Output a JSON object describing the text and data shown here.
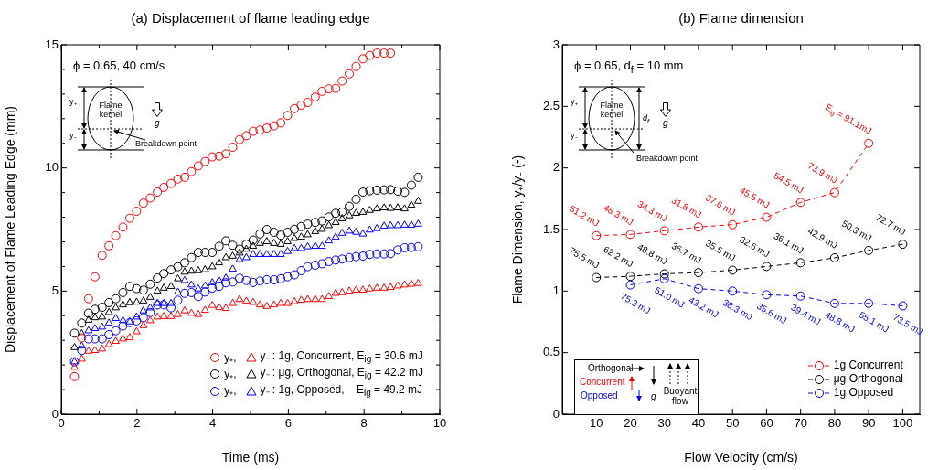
{
  "chart_data": [
    {
      "type": "scatter",
      "title": "(a) Displacement of flame leading edge",
      "xlabel": "Time (ms)",
      "ylabel": "Displacement of Flame Leading Edge (mm)",
      "x": [
        0.35,
        0.54,
        0.72,
        0.89,
        1.08,
        1.26,
        1.44,
        1.63,
        1.81,
        1.99,
        2.17,
        2.35,
        2.54,
        2.71,
        2.9,
        3.08,
        3.26,
        3.44,
        3.62,
        3.8,
        3.99,
        4.17,
        4.35,
        4.53,
        4.71,
        4.89,
        5.07,
        5.25,
        5.43,
        5.62,
        5.8,
        5.98,
        6.16,
        6.34,
        6.51,
        6.71,
        6.89,
        7.07,
        7.25,
        7.42,
        7.61,
        7.79,
        7.97,
        8.15,
        8.34,
        8.53,
        8.7,
        8.89,
        9.07,
        9.25,
        9.43
      ],
      "xlim": [
        0,
        10
      ],
      "xticks": [
        0,
        {
          "value": 1,
          "label": null
        },
        2,
        {
          "value": 3,
          "label": null
        },
        4,
        {
          "value": 5,
          "label": null
        },
        6,
        {
          "value": 7,
          "label": null
        },
        8,
        {
          "value": 9,
          "label": null
        },
        10
      ],
      "ylim": [
        0,
        15
      ],
      "yticks": [
        0,
        {
          "value": 1,
          "label": null
        },
        {
          "value": 2,
          "label": null
        },
        {
          "value": 3,
          "label": null
        },
        {
          "value": 4,
          "label": null
        },
        5,
        {
          "value": 6,
          "label": null
        },
        {
          "value": 7,
          "label": null
        },
        {
          "value": 8,
          "label": null
        },
        {
          "value": 9,
          "label": null
        },
        10,
        {
          "value": 11,
          "label": null
        },
        {
          "value": 12,
          "label": null
        },
        {
          "value": 13,
          "label": null
        },
        {
          "value": 14,
          "label": null
        },
        15
      ],
      "grid": false,
      "legend": "bottom right",
      "annotations": [
        "ϕ = 0.65, 40 cm/s",
        "y₊",
        "y₋",
        "Flame kernel",
        "g",
        "Breakdown point"
      ],
      "series": [
        {
          "name": "y₊,",
          "color": "#ff0000",
          "marker": "circle",
          "values": [
            1.53,
            3.1,
            4.69,
            5.58,
            6.45,
            6.84,
            7.25,
            7.6,
            7.96,
            8.24,
            8.57,
            8.78,
            9.02,
            9.21,
            9.37,
            9.55,
            9.62,
            9.85,
            10.08,
            10.26,
            10.45,
            10.48,
            10.57,
            10.84,
            11.15,
            11.31,
            11.49,
            11.54,
            11.62,
            11.71,
            11.83,
            12.13,
            12.41,
            12.55,
            12.66,
            12.88,
            13.11,
            13.21,
            13.23,
            13.53,
            13.82,
            14.12,
            14.43,
            14.57,
            14.66,
            14.66,
            14.66,
            null,
            null,
            null,
            null
          ]
        },
        {
          "name": "y₋ : 1g, Concurrent, E$_{ig}$ = 30.6 mJ",
          "color": "#ff0000",
          "marker": "triangle",
          "values": [
            1.91,
            2.24,
            2.56,
            2.59,
            2.65,
            2.83,
            2.96,
            3.06,
            3.11,
            3.35,
            3.6,
            3.8,
            3.95,
            3.97,
            3.97,
            4.05,
            4.2,
            4.1,
            4.05,
            4.22,
            4.42,
            4.34,
            4.3,
            4.5,
            4.66,
            4.59,
            4.54,
            4.44,
            4.38,
            4.44,
            4.5,
            4.5,
            4.57,
            4.63,
            4.66,
            4.66,
            4.66,
            4.78,
            4.91,
            4.94,
            5.0,
            5.04,
            5.04,
            5.09,
            5.12,
            5.12,
            5.15,
            5.21,
            5.25,
            5.28,
            5.31
          ]
        },
        {
          "name": "y₊,",
          "color": "#000000",
          "marker": "circle",
          "values": [
            3.29,
            3.7,
            4.1,
            4.26,
            4.34,
            4.53,
            4.69,
            4.94,
            5.19,
            5.1,
            5.04,
            5.28,
            5.53,
            5.71,
            5.86,
            5.99,
            6.15,
            6.36,
            6.57,
            6.57,
            6.57,
            6.82,
            7.04,
            6.86,
            6.7,
            6.9,
            7.07,
            7.32,
            7.5,
            7.39,
            7.27,
            7.39,
            7.51,
            7.62,
            7.72,
            7.79,
            7.85,
            8.01,
            8.16,
            8.21,
            8.44,
            8.73,
            9.02,
            9.07,
            9.1,
            9.11,
            9.12,
            9.06,
            9.01,
            9.3,
            9.62
          ]
        },
        {
          "name": "y₋ : μg, Orthogonal, E$_{ig}$ = 42.2 mJ",
          "color": "#000000",
          "marker": "triangle",
          "values": [
            2.71,
            3.27,
            3.82,
            3.92,
            3.95,
            4.13,
            4.32,
            4.44,
            4.53,
            4.55,
            4.6,
            4.75,
            5.0,
            5.12,
            5.19,
            5.5,
            5.77,
            5.81,
            5.83,
            5.87,
            5.99,
            6.15,
            6.36,
            6.42,
            6.55,
            6.7,
            6.82,
            6.94,
            7.01,
            6.94,
            6.9,
            7.01,
            7.14,
            7.19,
            7.29,
            7.42,
            7.51,
            7.66,
            7.79,
            7.94,
            8.06,
            8.16,
            8.2,
            8.28,
            8.34,
            8.38,
            8.36,
            8.38,
            8.34,
            8.49,
            8.65
          ]
        },
        {
          "name": "y₊,",
          "color": "#0000ff",
          "marker": "circle",
          "values": [
            2.13,
            2.59,
            3.06,
            3.06,
            3.06,
            3.23,
            3.39,
            3.58,
            3.72,
            3.79,
            3.92,
            4.13,
            4.44,
            4.44,
            4.32,
            4.63,
            4.91,
            4.94,
            4.78,
            4.96,
            5.12,
            5.19,
            5.34,
            5.37,
            5.52,
            5.43,
            5.35,
            5.41,
            5.46,
            5.46,
            5.5,
            5.58,
            5.66,
            5.83,
            5.99,
            6.05,
            6.11,
            6.2,
            6.26,
            6.3,
            6.36,
            6.4,
            6.42,
            6.49,
            6.51,
            6.51,
            6.52,
            6.67,
            6.76,
            6.77,
            6.8
          ]
        },
        {
          "name": "y₋ : 1g, Opposed,    E$_{ig}$ = 49.2 mJ",
          "color": "#0000ff",
          "marker": "triangle",
          "values": [
            2.13,
            2.77,
            3.39,
            3.48,
            3.54,
            3.7,
            3.89,
            3.8,
            3.75,
            3.95,
            4.2,
            4.32,
            4.5,
            4.5,
            4.5,
            4.96,
            5.43,
            5.25,
            5.09,
            5.21,
            5.34,
            5.43,
            5.53,
            5.89,
            6.28,
            6.36,
            6.49,
            6.49,
            6.49,
            6.49,
            6.49,
            6.61,
            6.73,
            6.73,
            6.8,
            6.82,
            6.82,
            7.04,
            7.19,
            7.35,
            7.44,
            7.39,
            7.32,
            7.48,
            7.54,
            7.64,
            7.66,
            7.66,
            7.68,
            7.68,
            7.72
          ]
        }
      ]
    },
    {
      "type": "line",
      "title": "(b) Flame dimension",
      "xlabel": "Flow Velocity (cm/s)",
      "ylabel": "Flame Dimension, y₊/y₋ (-)",
      "x": [
        10,
        20,
        30,
        40,
        50,
        60,
        70,
        80,
        90,
        100
      ],
      "xlim": [
        0,
        105
      ],
      "xticks": [
        10,
        20,
        30,
        40,
        50,
        60,
        70,
        80,
        90,
        100
      ],
      "ylim": [
        0,
        3
      ],
      "yticks": [
        0,
        0.5,
        1,
        1.5,
        2,
        2.5,
        3
      ],
      "grid": false,
      "legend": "bottom right",
      "marker": "circle",
      "line_style": "dashed",
      "annotations": [
        "ϕ = 0.65, d$_{f}$ = 10 mm",
        "y₊",
        "y₋",
        "Flame kernel",
        "g",
        "Breakdown point",
        "d$_{f}$",
        "Orthogonal",
        "Concurrent",
        "Opposed",
        "g",
        "Buoyant flow",
        {
          "text": "51.2 mJ",
          "x": 10,
          "y": 1.45
        },
        {
          "text": "48.3 mJ",
          "x": 20,
          "y": 1.46
        },
        {
          "text": "34.3 mJ",
          "x": 30,
          "y": 1.49
        },
        {
          "text": "31.8 mJ",
          "x": 40,
          "y": 1.52
        },
        {
          "text": "37.6 mJ",
          "x": 50,
          "y": 1.54
        },
        {
          "text": "45.5 mJ",
          "x": 60,
          "y": 1.6
        },
        {
          "text": "54.5 mJ",
          "x": 70,
          "y": 1.72
        },
        {
          "text": "73.9 mJ",
          "x": 80,
          "y": 1.8
        },
        {
          "text": "E$_{ig}$ = 91.1mJ",
          "x": 90,
          "y": 2.2
        },
        {
          "text": "75.5 mJ",
          "x": 10,
          "y": 1.11
        },
        {
          "text": "62.2 mJ",
          "x": 20,
          "y": 1.12
        },
        {
          "text": "48.8 mJ",
          "x": 30,
          "y": 1.14
        },
        {
          "text": "36.7 mJ",
          "x": 40,
          "y": 1.15
        },
        {
          "text": "35.5 mJ",
          "x": 50,
          "y": 1.17
        },
        {
          "text": "32.6 mJ",
          "x": 60,
          "y": 1.2
        },
        {
          "text": "36.1 mJ",
          "x": 70,
          "y": 1.23
        },
        {
          "text": "42.9 mJ",
          "x": 80,
          "y": 1.27
        },
        {
          "text": "50.3 mJ",
          "x": 90,
          "y": 1.33
        },
        {
          "text": "72.7 mJ",
          "x": 100,
          "y": 1.38
        },
        {
          "text": "75.3 mJ",
          "x": 20,
          "y": 1.05
        },
        {
          "text": "51.0 mJ",
          "x": 30,
          "y": 1.1
        },
        {
          "text": "43.2 mJ",
          "x": 40,
          "y": 1.02
        },
        {
          "text": "38.3 mJ",
          "x": 50,
          "y": 1.0
        },
        {
          "text": "35.6 mJ",
          "x": 60,
          "y": 0.97
        },
        {
          "text": "39.4 mJ",
          "x": 70,
          "y": 0.96
        },
        {
          "text": "48.8 mJ",
          "x": 80,
          "y": 0.9
        },
        {
          "text": "55.1 mJ",
          "x": 90,
          "y": 0.9
        },
        {
          "text": "73.5 mJ",
          "x": 100,
          "y": 0.88
        }
      ],
      "series": [
        {
          "name": "1g Concurrent",
          "color": "#ff0000",
          "values": [
            1.45,
            1.46,
            1.49,
            1.52,
            1.54,
            1.6,
            1.72,
            1.8,
            2.2,
            null
          ]
        },
        {
          "name": "μg Orthogonal",
          "color": "#000000",
          "values": [
            1.11,
            1.12,
            1.14,
            1.15,
            1.17,
            1.2,
            1.23,
            1.27,
            1.33,
            1.38
          ]
        },
        {
          "name": "1g Opposed",
          "color": "#0000ff",
          "values": [
            null,
            1.05,
            1.1,
            1.02,
            1.0,
            0.97,
            0.96,
            0.9,
            0.9,
            0.88
          ]
        }
      ]
    }
  ]
}
